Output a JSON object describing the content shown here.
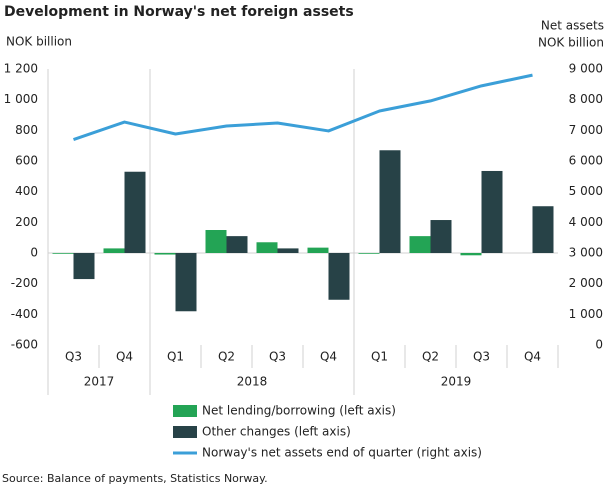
{
  "chart_data": {
    "type": "bar-line",
    "title": "Development in Norway's net foreign assets",
    "y_label": "NOK billion",
    "y2_label": [
      "Net assets",
      "NOK billion"
    ],
    "categories": [
      "Q3",
      "Q4",
      "Q1",
      "Q2",
      "Q3",
      "Q4",
      "Q1",
      "Q2",
      "Q3",
      "Q4"
    ],
    "groups": [
      {
        "name": "2017",
        "size": 2
      },
      {
        "name": "2018",
        "size": 4
      },
      {
        "name": "2019",
        "size": 4
      }
    ],
    "series": [
      {
        "name": "Net lending/borrowing (left axis)",
        "color": "#23a455",
        "kind": "bar",
        "values": [
          -5,
          30,
          -10,
          150,
          70,
          35,
          -5,
          110,
          -15,
          null
        ]
      },
      {
        "name": "Other changes (left axis)",
        "color": "#274247",
        "kind": "bar",
        "values": [
          -170,
          530,
          -380,
          110,
          30,
          -305,
          670,
          215,
          535,
          305
        ]
      },
      {
        "name": "Norway's net assets end of quarter (right axis)",
        "color": "#3b9fd8",
        "kind": "line",
        "axis": "y2",
        "values": [
          6700,
          7270,
          6880,
          7140,
          7240,
          6980,
          7630,
          7960,
          8450,
          8800
        ]
      }
    ],
    "ylim": [
      -600,
      1200
    ],
    "yticks": [
      -600,
      -400,
      -200,
      0,
      200,
      400,
      600,
      800,
      {
        "value": 1000,
        "label": "1 000"
      },
      {
        "value": 1200,
        "label": "1 200"
      }
    ],
    "y2lim": [
      0,
      9000
    ],
    "y2ticks": [
      0,
      {
        "value": 1000,
        "label": "1 000"
      },
      {
        "value": 2000,
        "label": "2 000"
      },
      {
        "value": 3000,
        "label": "3 000"
      },
      {
        "value": 4000,
        "label": "4 000"
      },
      {
        "value": 5000,
        "label": "5 000"
      },
      {
        "value": 6000,
        "label": "6 000"
      },
      {
        "value": 7000,
        "label": "7 000"
      },
      {
        "value": 8000,
        "label": "8 000"
      },
      {
        "value": 9000,
        "label": "9 000"
      }
    ],
    "source": "Source: Balance of payments, Statistics Norway."
  }
}
